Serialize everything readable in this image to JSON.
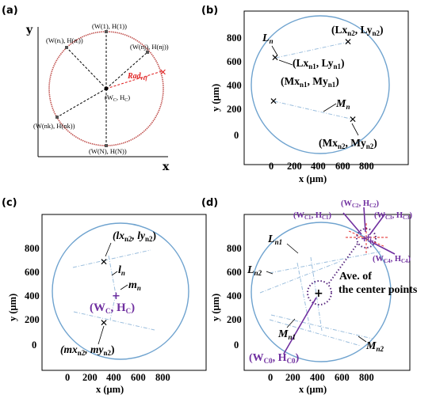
{
  "panels": {
    "a": {
      "label": "(a)",
      "x_axis": "x",
      "y_axis": "y",
      "points": {
        "top": "(W(1), H(1))",
        "ni": "(W(nᵢ), H(nᵢ))",
        "nj": "(W(nj), H(nj))",
        "center": "(W",
        "center2": "C",
        "center3": ", H",
        "center4": "C",
        "center5": ")",
        "nk": "(W(nk), H(nk))",
        "bottom": "(W(N), H(N))"
      },
      "rad": "Rad",
      "rad_sub": "ref"
    },
    "b": {
      "label": "(b)",
      "ylabel": "y (μm)",
      "xlabel": "x (μm)",
      "yticks": [
        "800",
        "600",
        "400",
        "200",
        "0"
      ],
      "xticks": [
        "0",
        "200",
        "400",
        "600",
        "800"
      ],
      "Ln": "L",
      "Ln_sub": "n",
      "Mn": "M",
      "Mn_sub": "n",
      "Lx_n2": "(Lx",
      "Lx_n2_s": "n2",
      "Ly_n2": ", Ly",
      "Ly_n2_s": "n2",
      "Lx_n1": "(Lx",
      "Lx_n1_s": "n1",
      "Ly_n1": ", Ly",
      "Ly_n1_s": "n1",
      "Mx_n1": "(Mx",
      "Mx_n1_s": "n1",
      "My_n1": ", My",
      "My_n1_s": "n1",
      "Mx_n2": "(Mx",
      "Mx_n2_s": "n2",
      "My_n2": ", My",
      "My_n2_s": "n2"
    },
    "c": {
      "label": "(c)",
      "ylabel": "y (μm)",
      "xlabel": "x (μm)",
      "yticks": [
        "800",
        "600",
        "400",
        "200",
        "0"
      ],
      "xticks": [
        "0",
        "200",
        "400",
        "600",
        "800"
      ],
      "ln": "l",
      "ln_sub": "n",
      "mn": "m",
      "mn_sub": "n",
      "lx": "(lx",
      "lx_s": "n2",
      "ly": ", ly",
      "ly_s": "n2",
      "mx": "(mx",
      "mx_s": "n2",
      "my": ", my",
      "my_s": "n2",
      "wc": "(W",
      "wc_s": "C",
      "hc": ", H",
      "hc_s": "C"
    },
    "d": {
      "label": "(d)",
      "ylabel": "y (μm)",
      "xlabel": "x (μm)",
      "yticks": [
        "800",
        "600",
        "400",
        "200",
        "0"
      ],
      "xticks": [
        "0",
        "200",
        "400",
        "600",
        "800"
      ],
      "Ln1": "L",
      "Ln1_s": "n1",
      "Ln2": "L",
      "Ln2_s": "n2",
      "Mn1": "M",
      "Mn1_s": "n1",
      "Mn2": "M",
      "Mn2_s": "n2",
      "ave1": "Ave. of",
      "ave2": "the center points",
      "c1": "(W",
      "c1_s": "C1",
      "c1b": ", H",
      "c1b_s": "C1",
      "c2": "(W",
      "c2_s": "C2",
      "c2b": ", H",
      "c2b_s": "C2",
      "c3": "(W",
      "c3_s": "C3",
      "c3b": ", H",
      "c3b_s": "C3",
      "c4": "(W",
      "c4_s": "C4",
      "c4b": ", H",
      "c4b_s": "C4",
      "c0": "(W",
      "c0_s": "C0",
      "c0b": ", H",
      "c0b_s": "C0"
    }
  },
  "colors": {
    "circle_red": "#c0504d",
    "circle_blue": "#6fa3cf",
    "purple": "#7030a0",
    "red_dash": "#e02020"
  }
}
